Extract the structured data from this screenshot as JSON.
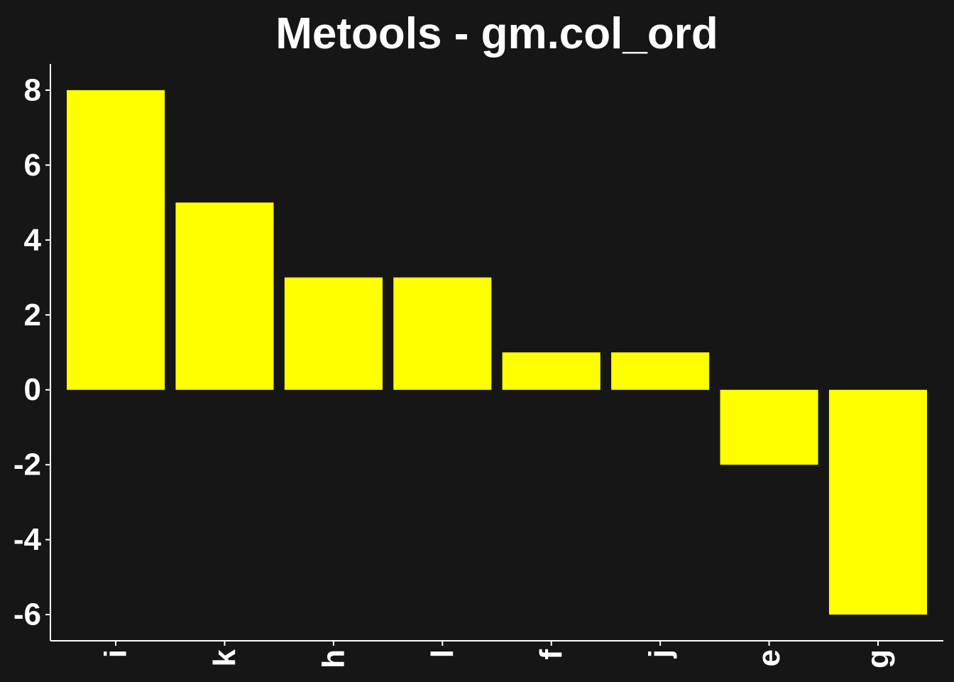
{
  "chart_data": {
    "type": "bar",
    "title": "Metools - gm.col_ord",
    "xlabel": "",
    "ylabel": "",
    "categories": [
      "i",
      "k",
      "h",
      "l",
      "f",
      "j",
      "e",
      "g"
    ],
    "values": [
      8,
      5,
      3,
      3,
      1,
      1,
      -2,
      -6
    ],
    "ylim": [
      -6.7,
      8.7
    ],
    "yticks": [
      -6,
      -4,
      -2,
      0,
      2,
      4,
      6,
      8
    ],
    "ytick_labels": [
      "-6",
      "-4",
      "-2",
      "0",
      "2",
      "4",
      "6",
      "8"
    ],
    "x_tick_label_rotation": "vertical",
    "grid": false,
    "legend": "none",
    "colors": {
      "background": "#161616",
      "bar": "#ffff00",
      "text": "#ffffff",
      "axis": "#ffffff"
    }
  }
}
